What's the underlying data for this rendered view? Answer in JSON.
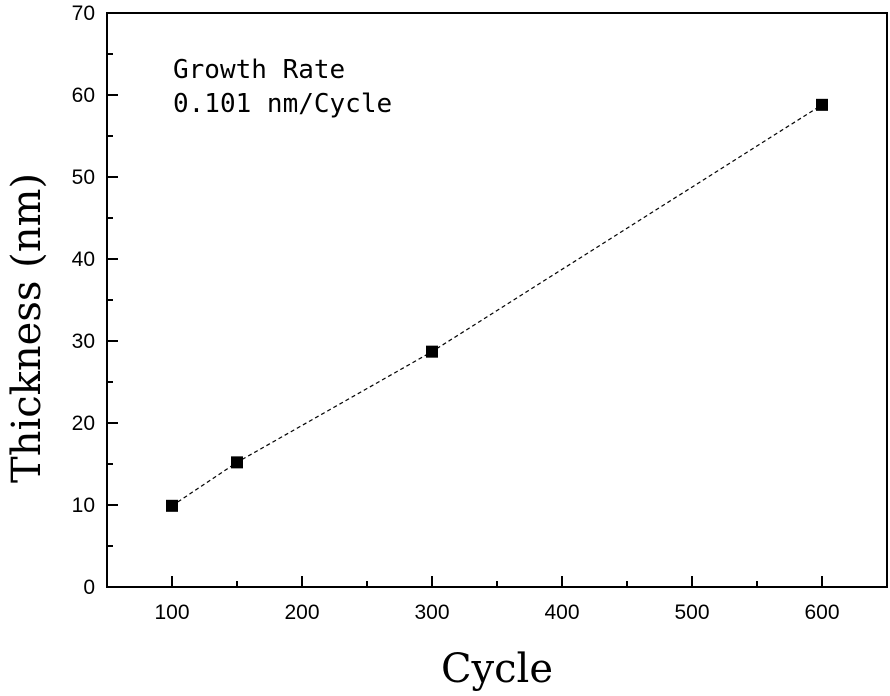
{
  "chart_data": {
    "type": "scatter",
    "title": "",
    "xlabel": "Cycle",
    "ylabel": "Thickness (nm)",
    "xlim": [
      50,
      650
    ],
    "ylim": [
      0,
      70
    ],
    "xticks": [
      100,
      200,
      300,
      400,
      500,
      600
    ],
    "yticks": [
      0,
      10,
      20,
      30,
      40,
      50,
      60,
      70
    ],
    "grid": false,
    "legend": "none",
    "series": [
      {
        "marker": "square",
        "color": "#000000",
        "line_style": "dashed",
        "x": [
          100,
          150,
          300,
          600
        ],
        "y": [
          9.9,
          15.2,
          28.7,
          58.8
        ]
      }
    ],
    "annotations": [
      "Growth Rate",
      "0.101 nm/Cycle"
    ]
  }
}
